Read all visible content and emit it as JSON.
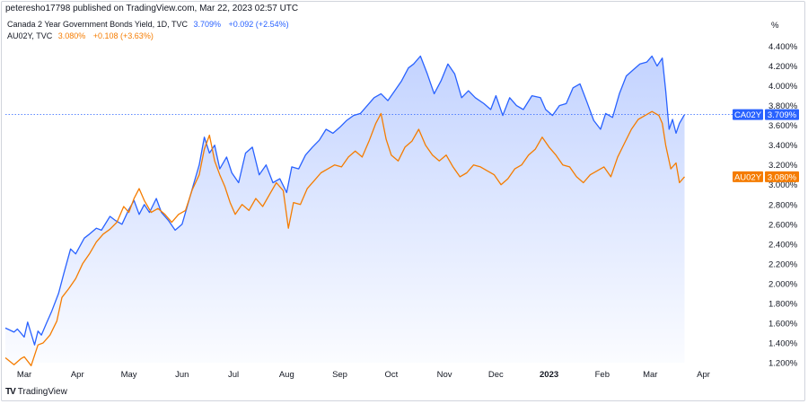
{
  "header": {
    "published": "peteresho17798 published on TradingView.com, Mar 22, 2023 02:57 UTC"
  },
  "legend": [
    {
      "name": "Canada 2 Year Government Bonds Yield, 1D, TVC",
      "value": "3.709%",
      "change": "+0.092 (+2.54%)",
      "color": "#2962ff"
    },
    {
      "name": "AU02Y, TVC",
      "value": "3.080%",
      "change": "+0.108 (+3.63%)",
      "color": "#f57c00"
    }
  ],
  "footer": {
    "brand": "TradingView",
    "logo": "TV"
  },
  "chart_data": {
    "type": "line",
    "unit_label": "%",
    "ylim": [
      1.2,
      4.45
    ],
    "y_ticks": [
      "4.400%",
      "4.200%",
      "4.000%",
      "3.800%",
      "3.600%",
      "3.400%",
      "3.200%",
      "3.000%",
      "2.800%",
      "2.600%",
      "2.400%",
      "2.200%",
      "2.000%",
      "1.800%",
      "1.600%",
      "1.400%",
      "1.200%"
    ],
    "y_tick_values": [
      4.4,
      4.2,
      4.0,
      3.8,
      3.6,
      3.4,
      3.2,
      3.0,
      2.8,
      2.6,
      2.4,
      2.2,
      2.0,
      1.8,
      1.6,
      1.4,
      1.2
    ],
    "x_ticks": [
      {
        "label": "Mar",
        "date": "2022-03-01",
        "bold": false
      },
      {
        "label": "Apr",
        "date": "2022-04-01",
        "bold": false
      },
      {
        "label": "May",
        "date": "2022-05-01",
        "bold": false
      },
      {
        "label": "Jun",
        "date": "2022-06-01",
        "bold": false
      },
      {
        "label": "Jul",
        "date": "2022-07-01",
        "bold": false
      },
      {
        "label": "Aug",
        "date": "2022-08-01",
        "bold": false
      },
      {
        "label": "Sep",
        "date": "2022-09-01",
        "bold": false
      },
      {
        "label": "Oct",
        "date": "2022-10-01",
        "bold": false
      },
      {
        "label": "Nov",
        "date": "2022-11-01",
        "bold": false
      },
      {
        "label": "Dec",
        "date": "2022-12-01",
        "bold": false
      },
      {
        "label": "2023",
        "date": "2023-01-01",
        "bold": true
      },
      {
        "label": "Feb",
        "date": "2023-02-01",
        "bold": false
      },
      {
        "label": "Mar",
        "date": "2023-03-01",
        "bold": false
      },
      {
        "label": "Apr",
        "date": "2023-04-01",
        "bold": false
      }
    ],
    "series": [
      {
        "name": "CA02Y",
        "color": "#2962ff",
        "area": true,
        "last_value_label": "3.709%",
        "last_value": 3.709,
        "points": [
          [
            "2022-02-18",
            1.55
          ],
          [
            "2022-02-23",
            1.51
          ],
          [
            "2022-02-25",
            1.54
          ],
          [
            "2022-03-01",
            1.46
          ],
          [
            "2022-03-03",
            1.61
          ],
          [
            "2022-03-07",
            1.38
          ],
          [
            "2022-03-09",
            1.52
          ],
          [
            "2022-03-11",
            1.48
          ],
          [
            "2022-03-14",
            1.6
          ],
          [
            "2022-03-17",
            1.72
          ],
          [
            "2022-03-21",
            1.9
          ],
          [
            "2022-03-24",
            2.1
          ],
          [
            "2022-03-28",
            2.35
          ],
          [
            "2022-03-31",
            2.3
          ],
          [
            "2022-04-05",
            2.46
          ],
          [
            "2022-04-08",
            2.5
          ],
          [
            "2022-04-12",
            2.56
          ],
          [
            "2022-04-15",
            2.54
          ],
          [
            "2022-04-20",
            2.68
          ],
          [
            "2022-04-23",
            2.64
          ],
          [
            "2022-04-27",
            2.6
          ],
          [
            "2022-05-01",
            2.75
          ],
          [
            "2022-05-04",
            2.84
          ],
          [
            "2022-05-07",
            2.7
          ],
          [
            "2022-05-10",
            2.8
          ],
          [
            "2022-05-13",
            2.72
          ],
          [
            "2022-05-17",
            2.86
          ],
          [
            "2022-05-20",
            2.72
          ],
          [
            "2022-05-24",
            2.64
          ],
          [
            "2022-05-28",
            2.54
          ],
          [
            "2022-06-01",
            2.6
          ],
          [
            "2022-06-04",
            2.78
          ],
          [
            "2022-06-08",
            3.02
          ],
          [
            "2022-06-11",
            3.2
          ],
          [
            "2022-06-14",
            3.48
          ],
          [
            "2022-06-17",
            3.32
          ],
          [
            "2022-06-20",
            3.4
          ],
          [
            "2022-06-23",
            3.16
          ],
          [
            "2022-06-27",
            3.28
          ],
          [
            "2022-06-30",
            3.12
          ],
          [
            "2022-07-04",
            3.02
          ],
          [
            "2022-07-08",
            3.32
          ],
          [
            "2022-07-12",
            3.38
          ],
          [
            "2022-07-16",
            3.1
          ],
          [
            "2022-07-20",
            3.2
          ],
          [
            "2022-07-24",
            3.02
          ],
          [
            "2022-07-28",
            3.06
          ],
          [
            "2022-08-01",
            2.92
          ],
          [
            "2022-08-04",
            3.18
          ],
          [
            "2022-08-08",
            3.16
          ],
          [
            "2022-08-12",
            3.3
          ],
          [
            "2022-08-16",
            3.38
          ],
          [
            "2022-08-20",
            3.45
          ],
          [
            "2022-08-24",
            3.56
          ],
          [
            "2022-08-28",
            3.52
          ],
          [
            "2022-09-01",
            3.58
          ],
          [
            "2022-09-05",
            3.65
          ],
          [
            "2022-09-09",
            3.7
          ],
          [
            "2022-09-13",
            3.72
          ],
          [
            "2022-09-17",
            3.8
          ],
          [
            "2022-09-21",
            3.88
          ],
          [
            "2022-09-25",
            3.92
          ],
          [
            "2022-09-29",
            3.85
          ],
          [
            "2022-10-03",
            3.95
          ],
          [
            "2022-10-07",
            4.05
          ],
          [
            "2022-10-11",
            4.18
          ],
          [
            "2022-10-14",
            4.22
          ],
          [
            "2022-10-18",
            4.3
          ],
          [
            "2022-10-22",
            4.12
          ],
          [
            "2022-10-26",
            3.92
          ],
          [
            "2022-10-30",
            4.05
          ],
          [
            "2022-11-03",
            4.22
          ],
          [
            "2022-11-07",
            4.12
          ],
          [
            "2022-11-11",
            3.88
          ],
          [
            "2022-11-15",
            3.95
          ],
          [
            "2022-11-19",
            3.88
          ],
          [
            "2022-11-24",
            3.82
          ],
          [
            "2022-11-28",
            3.76
          ],
          [
            "2022-12-01",
            3.9
          ],
          [
            "2022-12-05",
            3.7
          ],
          [
            "2022-12-09",
            3.88
          ],
          [
            "2022-12-13",
            3.8
          ],
          [
            "2022-12-17",
            3.76
          ],
          [
            "2022-12-22",
            3.9
          ],
          [
            "2022-12-27",
            3.88
          ],
          [
            "2022-12-30",
            3.76
          ],
          [
            "2023-01-03",
            3.7
          ],
          [
            "2023-01-07",
            3.8
          ],
          [
            "2023-01-11",
            3.82
          ],
          [
            "2023-01-15",
            3.98
          ],
          [
            "2023-01-19",
            4.02
          ],
          [
            "2023-01-23",
            3.84
          ],
          [
            "2023-01-27",
            3.65
          ],
          [
            "2023-01-31",
            3.56
          ],
          [
            "2023-02-03",
            3.72
          ],
          [
            "2023-02-07",
            3.68
          ],
          [
            "2023-02-11",
            3.92
          ],
          [
            "2023-02-15",
            4.1
          ],
          [
            "2023-02-19",
            4.16
          ],
          [
            "2023-02-23",
            4.22
          ],
          [
            "2023-02-27",
            4.24
          ],
          [
            "2023-03-02",
            4.3
          ],
          [
            "2023-03-05",
            4.2
          ],
          [
            "2023-03-08",
            4.28
          ],
          [
            "2023-03-10",
            3.95
          ],
          [
            "2023-03-12",
            3.56
          ],
          [
            "2023-03-14",
            3.66
          ],
          [
            "2023-03-16",
            3.52
          ],
          [
            "2023-03-18",
            3.62
          ],
          [
            "2023-03-21",
            3.709
          ]
        ]
      },
      {
        "name": "AU02Y",
        "color": "#f57c00",
        "area": false,
        "last_value_label": "3.080%",
        "last_value": 3.08,
        "points": [
          [
            "2022-02-18",
            1.25
          ],
          [
            "2022-02-23",
            1.18
          ],
          [
            "2022-02-27",
            1.24
          ],
          [
            "2022-03-01",
            1.26
          ],
          [
            "2022-03-05",
            1.17
          ],
          [
            "2022-03-09",
            1.38
          ],
          [
            "2022-03-12",
            1.4
          ],
          [
            "2022-03-16",
            1.48
          ],
          [
            "2022-03-20",
            1.62
          ],
          [
            "2022-03-23",
            1.86
          ],
          [
            "2022-03-27",
            1.95
          ],
          [
            "2022-03-31",
            2.05
          ],
          [
            "2022-04-04",
            2.2
          ],
          [
            "2022-04-08",
            2.3
          ],
          [
            "2022-04-12",
            2.42
          ],
          [
            "2022-04-16",
            2.5
          ],
          [
            "2022-04-20",
            2.55
          ],
          [
            "2022-04-24",
            2.62
          ],
          [
            "2022-04-28",
            2.78
          ],
          [
            "2022-05-01",
            2.72
          ],
          [
            "2022-05-04",
            2.86
          ],
          [
            "2022-05-07",
            2.96
          ],
          [
            "2022-05-10",
            2.84
          ],
          [
            "2022-05-14",
            2.72
          ],
          [
            "2022-05-18",
            2.76
          ],
          [
            "2022-05-22",
            2.7
          ],
          [
            "2022-05-26",
            2.62
          ],
          [
            "2022-05-30",
            2.7
          ],
          [
            "2022-06-03",
            2.74
          ],
          [
            "2022-06-07",
            2.95
          ],
          [
            "2022-06-11",
            3.1
          ],
          [
            "2022-06-14",
            3.36
          ],
          [
            "2022-06-17",
            3.5
          ],
          [
            "2022-06-20",
            3.24
          ],
          [
            "2022-06-23",
            3.1
          ],
          [
            "2022-06-26",
            2.98
          ],
          [
            "2022-06-29",
            2.82
          ],
          [
            "2022-07-02",
            2.7
          ],
          [
            "2022-07-06",
            2.8
          ],
          [
            "2022-07-10",
            2.74
          ],
          [
            "2022-07-14",
            2.86
          ],
          [
            "2022-07-18",
            2.78
          ],
          [
            "2022-07-22",
            2.9
          ],
          [
            "2022-07-26",
            3.02
          ],
          [
            "2022-07-30",
            2.94
          ],
          [
            "2022-08-02",
            2.56
          ],
          [
            "2022-08-05",
            2.82
          ],
          [
            "2022-08-09",
            2.8
          ],
          [
            "2022-08-13",
            2.96
          ],
          [
            "2022-08-17",
            3.04
          ],
          [
            "2022-08-21",
            3.12
          ],
          [
            "2022-08-25",
            3.16
          ],
          [
            "2022-08-29",
            3.2
          ],
          [
            "2022-09-02",
            3.18
          ],
          [
            "2022-09-06",
            3.28
          ],
          [
            "2022-09-10",
            3.34
          ],
          [
            "2022-09-14",
            3.28
          ],
          [
            "2022-09-18",
            3.44
          ],
          [
            "2022-09-22",
            3.62
          ],
          [
            "2022-09-25",
            3.72
          ],
          [
            "2022-09-28",
            3.46
          ],
          [
            "2022-10-01",
            3.3
          ],
          [
            "2022-10-05",
            3.24
          ],
          [
            "2022-10-09",
            3.38
          ],
          [
            "2022-10-13",
            3.44
          ],
          [
            "2022-10-17",
            3.56
          ],
          [
            "2022-10-21",
            3.4
          ],
          [
            "2022-10-25",
            3.3
          ],
          [
            "2022-10-29",
            3.24
          ],
          [
            "2022-11-02",
            3.3
          ],
          [
            "2022-11-06",
            3.18
          ],
          [
            "2022-11-10",
            3.08
          ],
          [
            "2022-11-14",
            3.12
          ],
          [
            "2022-11-18",
            3.2
          ],
          [
            "2022-11-22",
            3.18
          ],
          [
            "2022-11-26",
            3.14
          ],
          [
            "2022-11-30",
            3.1
          ],
          [
            "2022-12-04",
            3.0
          ],
          [
            "2022-12-08",
            3.06
          ],
          [
            "2022-12-12",
            3.16
          ],
          [
            "2022-12-16",
            3.2
          ],
          [
            "2022-12-20",
            3.3
          ],
          [
            "2022-12-24",
            3.36
          ],
          [
            "2022-12-28",
            3.48
          ],
          [
            "2023-01-01",
            3.38
          ],
          [
            "2023-01-05",
            3.3
          ],
          [
            "2023-01-09",
            3.2
          ],
          [
            "2023-01-13",
            3.18
          ],
          [
            "2023-01-17",
            3.08
          ],
          [
            "2023-01-21",
            3.02
          ],
          [
            "2023-01-25",
            3.1
          ],
          [
            "2023-01-29",
            3.14
          ],
          [
            "2023-02-02",
            3.18
          ],
          [
            "2023-02-06",
            3.08
          ],
          [
            "2023-02-10",
            3.28
          ],
          [
            "2023-02-14",
            3.42
          ],
          [
            "2023-02-18",
            3.56
          ],
          [
            "2023-02-22",
            3.66
          ],
          [
            "2023-02-26",
            3.7
          ],
          [
            "2023-03-02",
            3.74
          ],
          [
            "2023-03-06",
            3.7
          ],
          [
            "2023-03-08",
            3.62
          ],
          [
            "2023-03-10",
            3.4
          ],
          [
            "2023-03-13",
            3.16
          ],
          [
            "2023-03-16",
            3.22
          ],
          [
            "2023-03-18",
            3.02
          ],
          [
            "2023-03-21",
            3.08
          ]
        ]
      }
    ],
    "grid": false,
    "reference_line": "dotted horizontal at CA02Y last value"
  }
}
